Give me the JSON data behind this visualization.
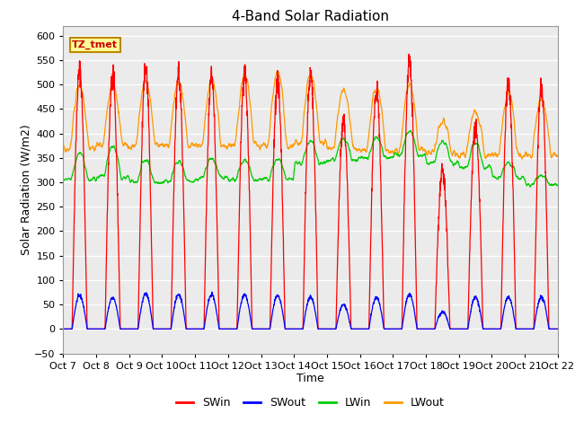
{
  "title": "4-Band Solar Radiation",
  "xlabel": "Time",
  "ylabel": "Solar Radiation (W/m2)",
  "ylim": [
    -50,
    620
  ],
  "x_tick_labels": [
    "Oct 7",
    "Oct 8",
    "Oct 9",
    "Oct 10",
    "Oct 11",
    "Oct 12",
    "Oct 13",
    "Oct 14",
    "Oct 15",
    "Oct 16",
    "Oct 17",
    "Oct 18",
    "Oct 19",
    "Oct 20",
    "Oct 21",
    "Oct 22"
  ],
  "legend_entries": [
    "SWin",
    "SWout",
    "LWin",
    "LWout"
  ],
  "legend_colors": [
    "#ff0000",
    "#0000ff",
    "#00cc00",
    "#ff9900"
  ],
  "annotation_text": "TZ_tmet",
  "annotation_box_color": "#ffff99",
  "annotation_box_edge": "#bb8800",
  "annotation_text_color": "#cc0000",
  "plot_bg_color": "#ebebeb",
  "grid_color": "#ffffff",
  "title_fontsize": 11,
  "label_fontsize": 9,
  "tick_fontsize": 8
}
